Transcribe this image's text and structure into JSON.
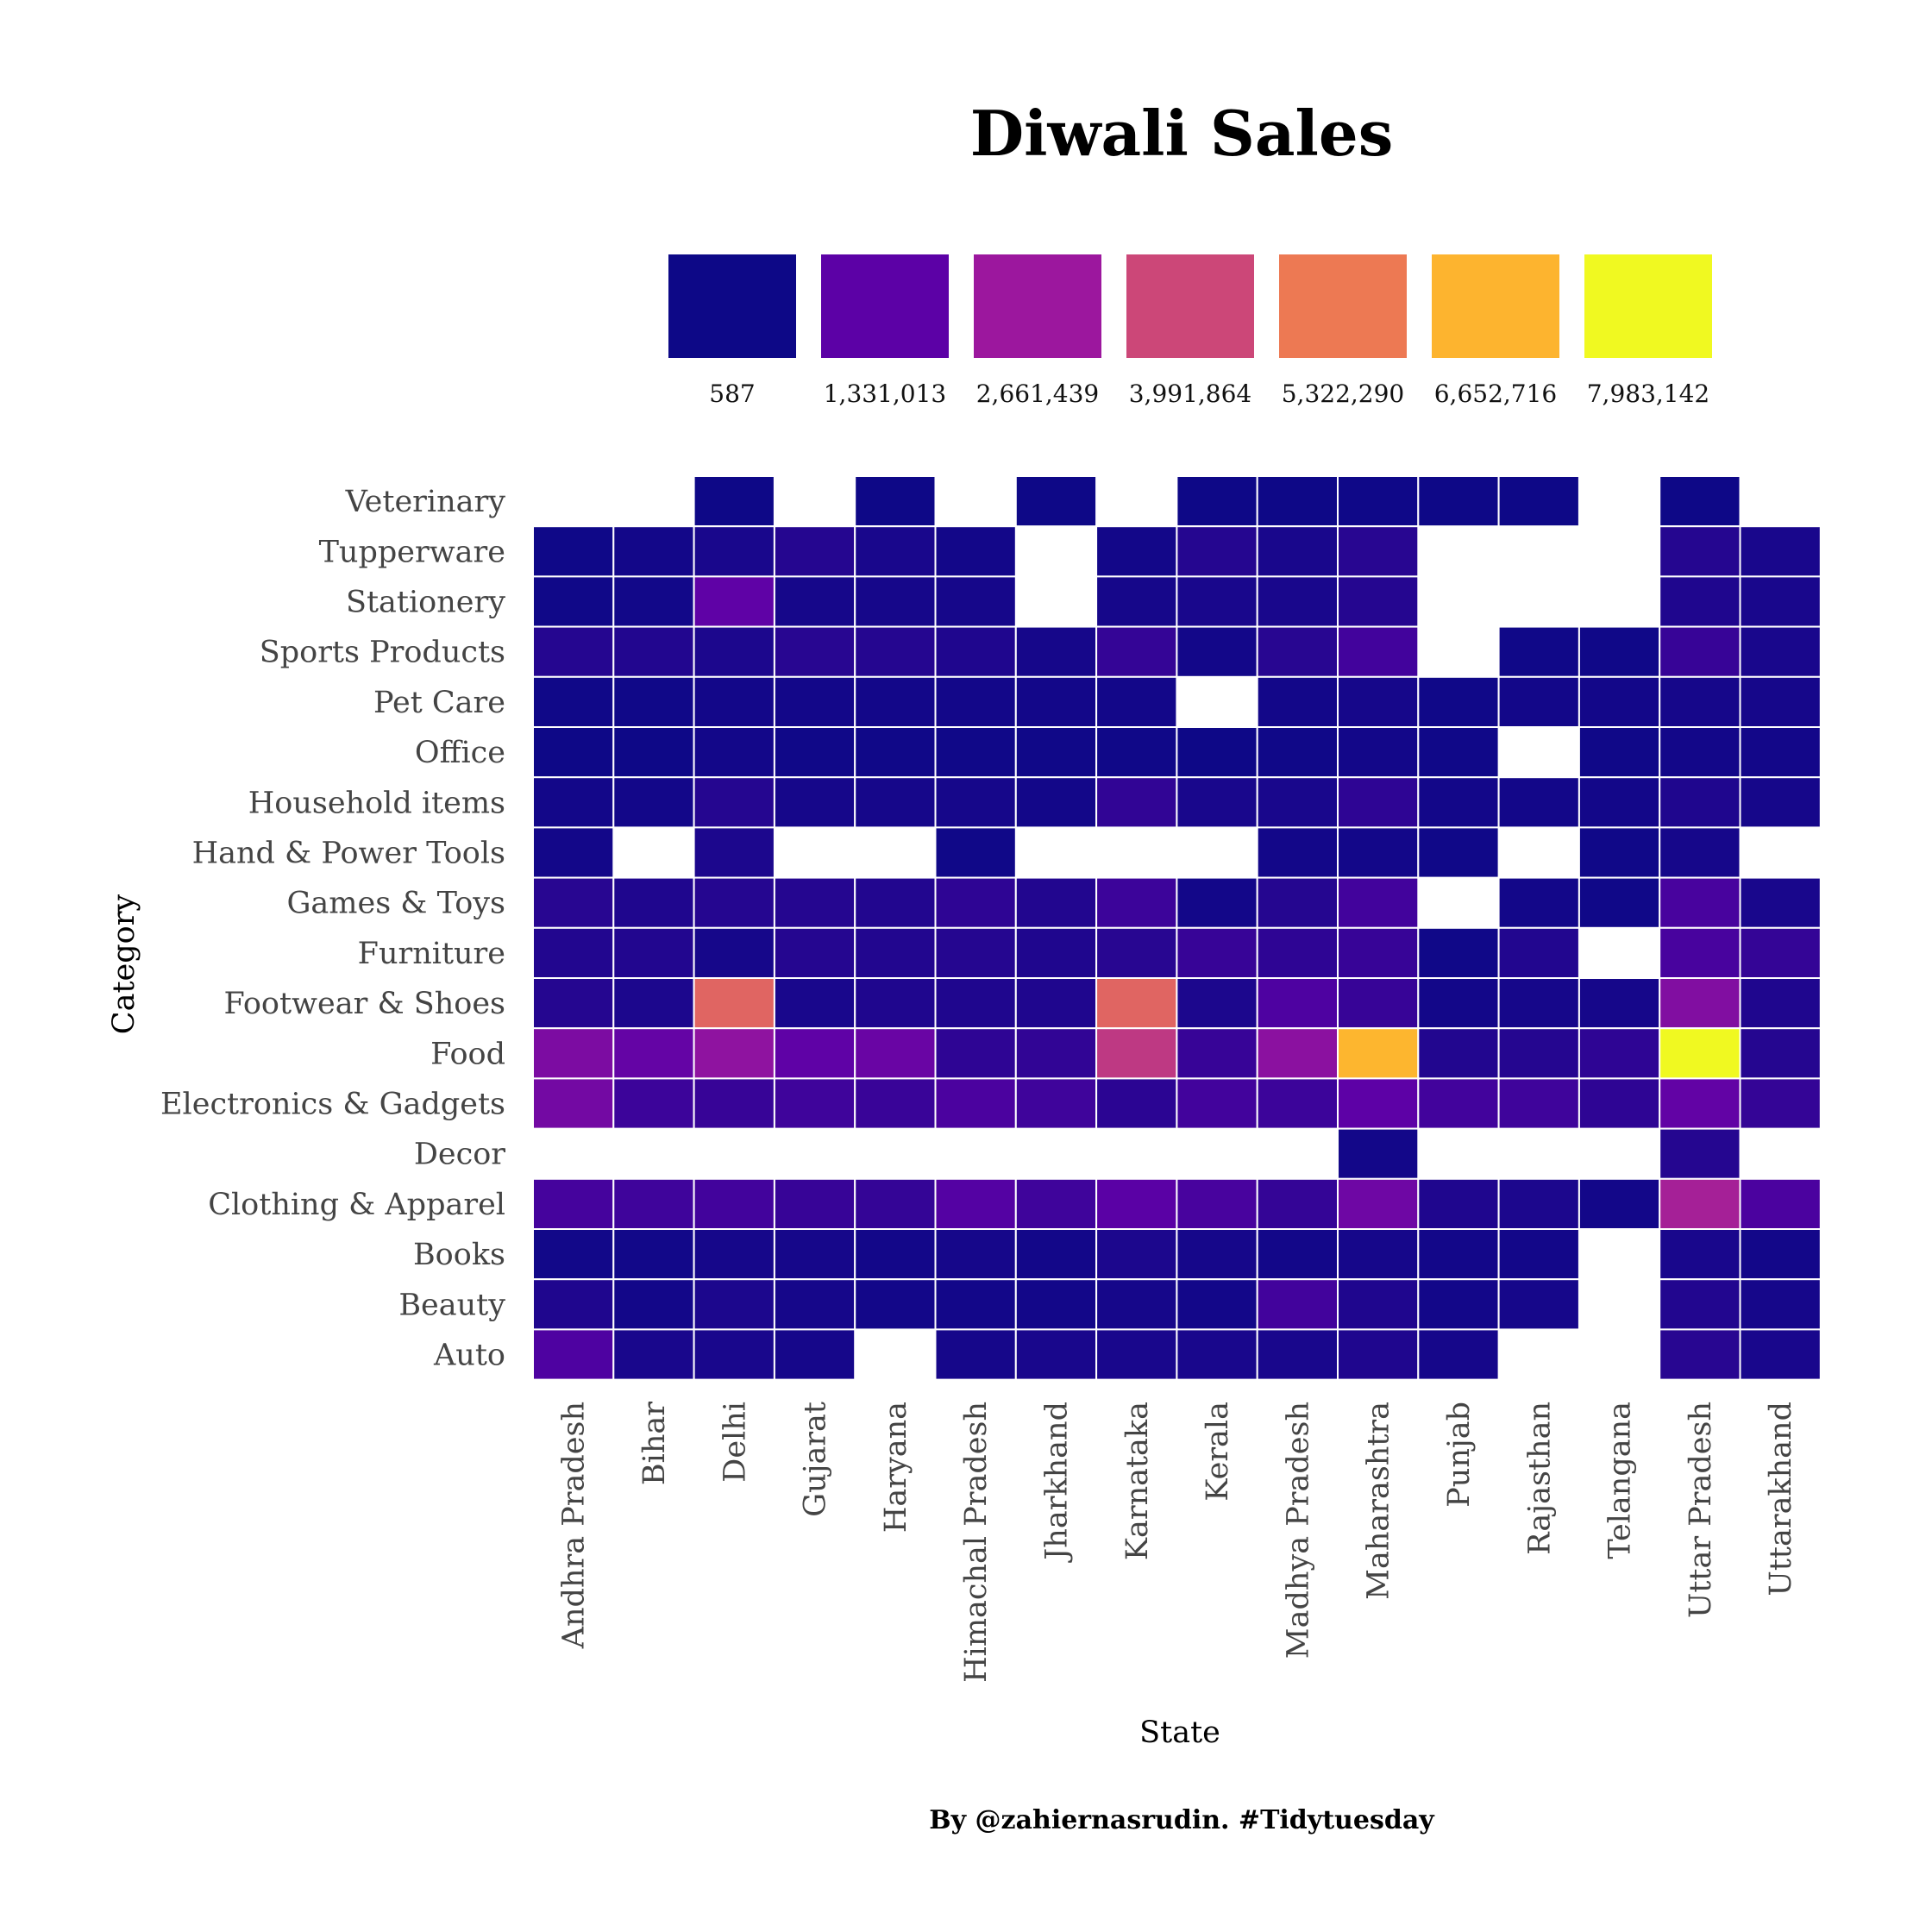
{
  "chart_data": {
    "type": "heatmap",
    "title": "Diwali Sales",
    "xlabel": "State",
    "ylabel": "Category",
    "caption": "By @zahiernasrudin. #Tidytuesday",
    "x": [
      "Andhra Pradesh",
      "Bihar",
      "Delhi",
      "Gujarat",
      "Haryana",
      "Himachal Pradesh",
      "Jharkhand",
      "Karnataka",
      "Kerala",
      "Madhya Pradesh",
      "Maharashtra",
      "Punjab",
      "Rajasthan",
      "Telangana",
      "Uttar Pradesh",
      "Uttarakhand"
    ],
    "y": [
      "Veterinary",
      "Tupperware",
      "Stationery",
      "Sports Products",
      "Pet Care",
      "Office",
      "Household items",
      "Hand & Power Tools",
      "Games & Toys",
      "Furniture",
      "Footwear & Shoes",
      "Food",
      "Electronics & Gadgets",
      "Decor",
      "Clothing & Apparel",
      "Books",
      "Beauty",
      "Auto"
    ],
    "legend": {
      "breaks": [
        587,
        1331013,
        2661439,
        3991864,
        5322290,
        6652716,
        7983142
      ],
      "labels": [
        "587",
        "1,331,013",
        "2,661,439",
        "3,991,864",
        "5,322,290",
        "6,652,716",
        "7,983,142"
      ],
      "colors": [
        "#0d0887",
        "#5c01a6",
        "#9c179e",
        "#cc4778",
        "#ed7953",
        "#fdb42f",
        "#f0f921"
      ]
    },
    "values": [
      [
        null,
        null,
        20000,
        null,
        20000,
        null,
        20000,
        null,
        20000,
        20000,
        30000,
        20000,
        20000,
        null,
        20000,
        null
      ],
      [
        30000,
        100000,
        200000,
        400000,
        200000,
        100000,
        null,
        100000,
        400000,
        200000,
        450000,
        null,
        null,
        null,
        400000,
        200000
      ],
      [
        50000,
        80000,
        1400000,
        150000,
        150000,
        150000,
        null,
        150000,
        200000,
        200000,
        400000,
        null,
        null,
        null,
        300000,
        200000
      ],
      [
        400000,
        350000,
        250000,
        450000,
        400000,
        300000,
        150000,
        650000,
        100000,
        450000,
        900000,
        null,
        50000,
        50000,
        700000,
        200000
      ],
      [
        50000,
        50000,
        100000,
        100000,
        100000,
        100000,
        100000,
        100000,
        null,
        100000,
        150000,
        50000,
        100000,
        100000,
        150000,
        150000
      ],
      [
        20000,
        20000,
        100000,
        50000,
        50000,
        50000,
        50000,
        50000,
        20000,
        50000,
        100000,
        50000,
        null,
        50000,
        100000,
        100000
      ],
      [
        100000,
        100000,
        400000,
        150000,
        150000,
        150000,
        100000,
        600000,
        200000,
        200000,
        550000,
        100000,
        100000,
        100000,
        300000,
        150000
      ],
      [
        100000,
        null,
        250000,
        null,
        null,
        50000,
        null,
        null,
        null,
        100000,
        100000,
        50000,
        null,
        50000,
        150000,
        null
      ],
      [
        450000,
        300000,
        400000,
        400000,
        350000,
        550000,
        350000,
        800000,
        100000,
        400000,
        900000,
        null,
        100000,
        50000,
        1000000,
        200000
      ],
      [
        350000,
        350000,
        150000,
        400000,
        350000,
        400000,
        300000,
        450000,
        700000,
        550000,
        700000,
        50000,
        350000,
        null,
        1000000,
        650000
      ],
      [
        400000,
        250000,
        4800000,
        200000,
        300000,
        300000,
        300000,
        4800000,
        250000,
        1100000,
        700000,
        100000,
        150000,
        150000,
        2100000,
        300000
      ],
      [
        2000000,
        1500000,
        2400000,
        1400000,
        1600000,
        550000,
        600000,
        3600000,
        700000,
        2300000,
        6700000,
        350000,
        400000,
        550000,
        7983142,
        400000
      ],
      [
        1800000,
        800000,
        700000,
        850000,
        750000,
        1050000,
        850000,
        500000,
        900000,
        800000,
        1350000,
        900000,
        850000,
        550000,
        1450000,
        650000
      ],
      [
        null,
        null,
        null,
        null,
        null,
        null,
        null,
        null,
        null,
        null,
        100000,
        null,
        null,
        null,
        400000,
        null
      ],
      [
        950000,
        850000,
        900000,
        700000,
        650000,
        1200000,
        850000,
        1300000,
        1000000,
        650000,
        1700000,
        300000,
        250000,
        100000,
        2900000,
        1050000
      ],
      [
        80000,
        80000,
        150000,
        150000,
        100000,
        150000,
        100000,
        250000,
        150000,
        100000,
        150000,
        100000,
        100000,
        null,
        200000,
        100000
      ],
      [
        300000,
        100000,
        250000,
        150000,
        100000,
        100000,
        100000,
        150000,
        100000,
        900000,
        300000,
        100000,
        150000,
        null,
        350000,
        150000
      ],
      [
        1100000,
        200000,
        200000,
        150000,
        null,
        150000,
        200000,
        200000,
        200000,
        200000,
        300000,
        150000,
        null,
        null,
        450000,
        200000
      ]
    ]
  }
}
